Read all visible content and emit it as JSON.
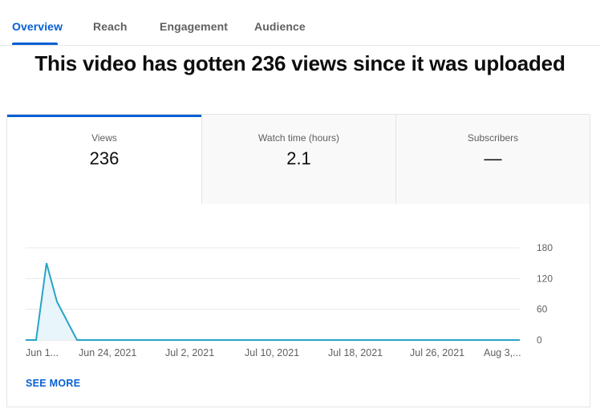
{
  "tabs": [
    {
      "label": "Overview",
      "active": true
    },
    {
      "label": "Reach",
      "active": false
    },
    {
      "label": "Engagement",
      "active": false
    },
    {
      "label": "Audience",
      "active": false
    }
  ],
  "headline": "This video has gotten 236 views since it was uploaded",
  "metrics": [
    {
      "label": "Views",
      "value": "236",
      "active": true
    },
    {
      "label": "Watch time (hours)",
      "value": "2.1",
      "active": false
    },
    {
      "label": "Subscribers",
      "value": "—",
      "active": false
    }
  ],
  "see_more_label": "SEE MORE",
  "colors": {
    "accent": "#065fd4",
    "line": "#29a3c7",
    "fill": "#e8f5fa"
  },
  "chart_data": {
    "type": "area",
    "x_tick_labels": [
      "Jun 1...",
      "Jun 24, 2021",
      "Jul 2, 2021",
      "Jul 10, 2021",
      "Jul 18, 2021",
      "Jul 26, 2021",
      "Aug 3,..."
    ],
    "y_ticks": [
      0,
      60,
      120,
      180
    ],
    "ylim": [
      0,
      180
    ],
    "x": [
      "day 0",
      "day 1",
      "day 2",
      "day 3",
      "day 4",
      "day 5",
      "day 60"
    ],
    "values": [
      0,
      0,
      150,
      75,
      0,
      0,
      0
    ],
    "grid": true
  }
}
